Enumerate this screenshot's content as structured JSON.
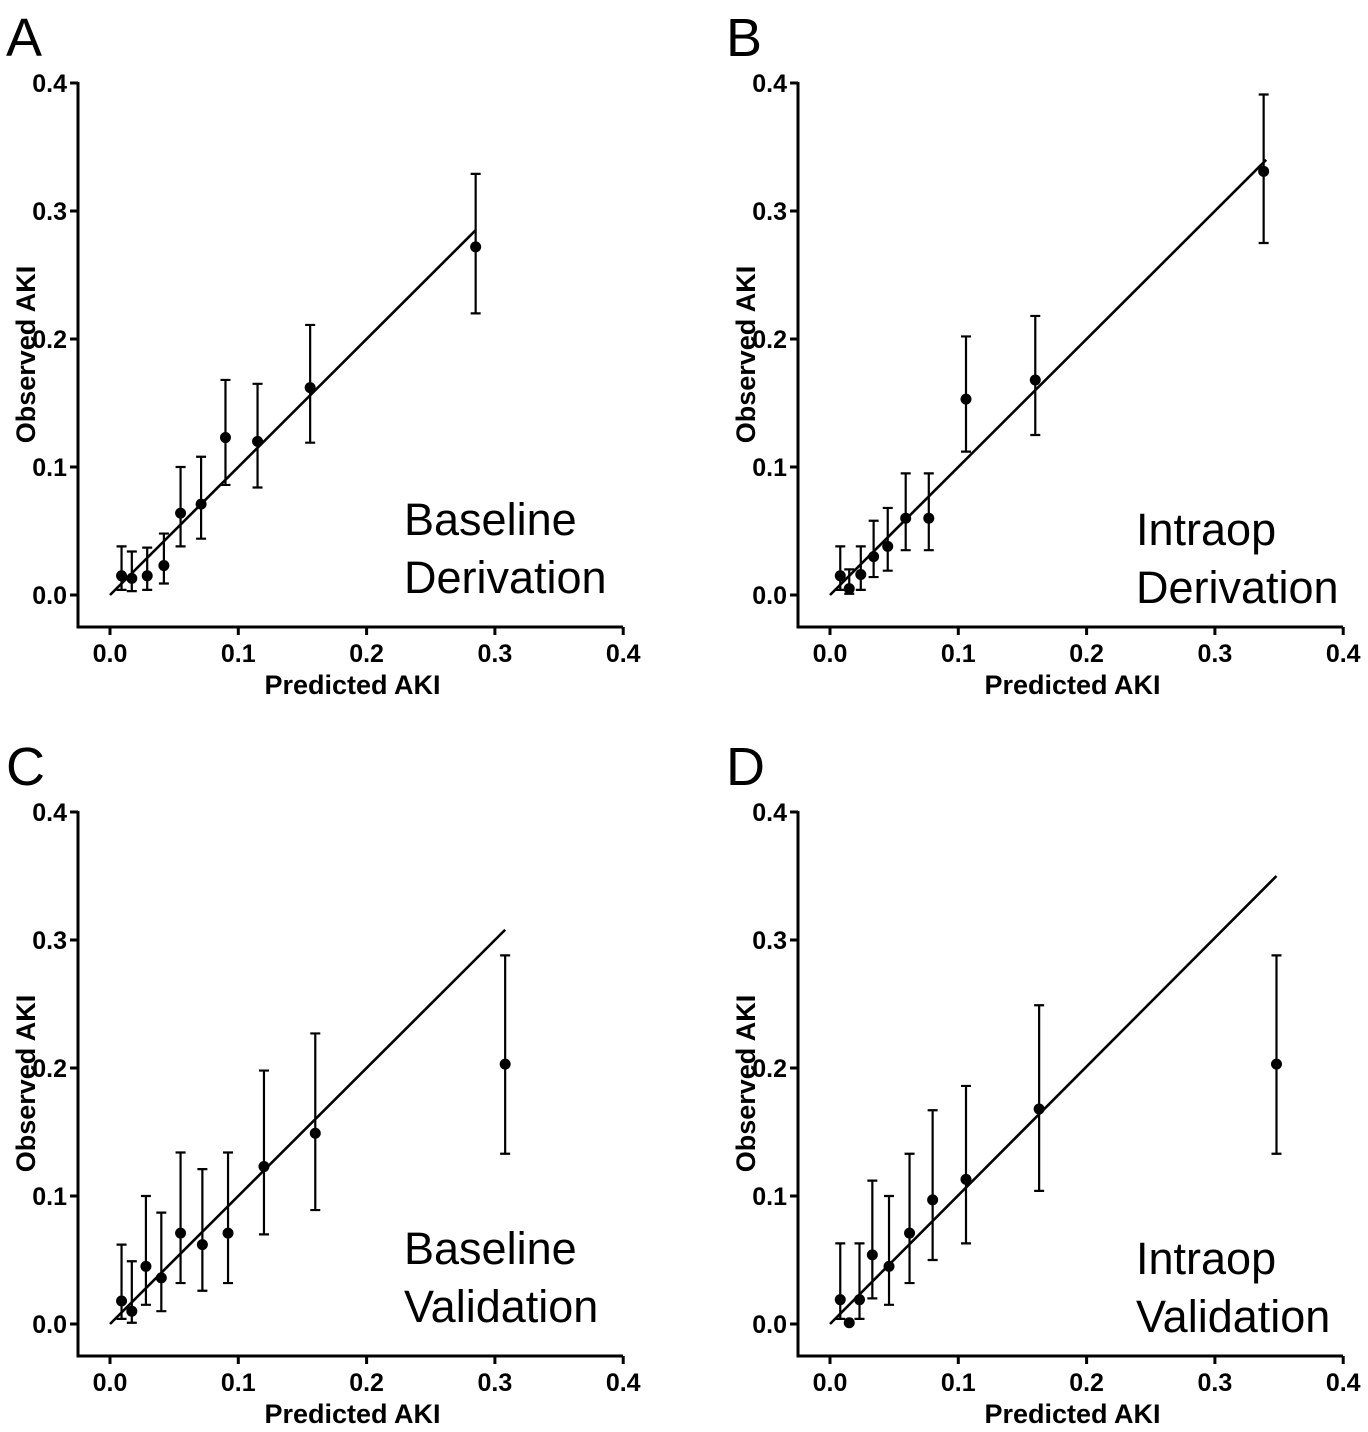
{
  "chart_data": [
    {
      "type": "scatter",
      "panel_label": "A",
      "annotation": [
        "Baseline",
        "Derivation"
      ],
      "xlabel": "Predicted AKI",
      "ylabel": "Observed AKI",
      "xlim": [
        0.0,
        0.4
      ],
      "ylim": [
        0.0,
        0.4
      ],
      "xticks": [
        "0.0",
        "0.1",
        "0.2",
        "0.3",
        "0.4"
      ],
      "yticks": [
        "0.0",
        "0.1",
        "0.2",
        "0.3",
        "0.4"
      ],
      "reference_line": {
        "x": [
          0.0,
          0.285
        ],
        "y": [
          0.0,
          0.285
        ]
      },
      "points": [
        {
          "x": 0.009,
          "y": 0.015,
          "lo": 0.004,
          "hi": 0.038
        },
        {
          "x": 0.017,
          "y": 0.013,
          "lo": 0.003,
          "hi": 0.034
        },
        {
          "x": 0.029,
          "y": 0.015,
          "lo": 0.004,
          "hi": 0.037
        },
        {
          "x": 0.042,
          "y": 0.023,
          "lo": 0.009,
          "hi": 0.048
        },
        {
          "x": 0.055,
          "y": 0.064,
          "lo": 0.038,
          "hi": 0.1
        },
        {
          "x": 0.071,
          "y": 0.071,
          "lo": 0.044,
          "hi": 0.108
        },
        {
          "x": 0.09,
          "y": 0.123,
          "lo": 0.086,
          "hi": 0.168
        },
        {
          "x": 0.115,
          "y": 0.12,
          "lo": 0.084,
          "hi": 0.165
        },
        {
          "x": 0.156,
          "y": 0.162,
          "lo": 0.119,
          "hi": 0.211
        },
        {
          "x": 0.285,
          "y": 0.272,
          "lo": 0.22,
          "hi": 0.329
        }
      ]
    },
    {
      "type": "scatter",
      "panel_label": "B",
      "annotation": [
        "Intraop",
        "Derivation"
      ],
      "xlabel": "Predicted AKI",
      "ylabel": "Observed AKI",
      "xlim": [
        0.0,
        0.4
      ],
      "ylim": [
        0.0,
        0.4
      ],
      "xticks": [
        "0.0",
        "0.1",
        "0.2",
        "0.3",
        "0.4"
      ],
      "yticks": [
        "0.0",
        "0.1",
        "0.2",
        "0.3",
        "0.4"
      ],
      "reference_line": {
        "x": [
          0.0,
          0.34
        ],
        "y": [
          0.0,
          0.34
        ]
      },
      "points": [
        {
          "x": 0.008,
          "y": 0.015,
          "lo": 0.004,
          "hi": 0.038
        },
        {
          "x": 0.015,
          "y": 0.005,
          "lo": 0.001,
          "hi": 0.02
        },
        {
          "x": 0.024,
          "y": 0.016,
          "lo": 0.004,
          "hi": 0.038
        },
        {
          "x": 0.034,
          "y": 0.03,
          "lo": 0.014,
          "hi": 0.058
        },
        {
          "x": 0.045,
          "y": 0.038,
          "lo": 0.019,
          "hi": 0.068
        },
        {
          "x": 0.059,
          "y": 0.06,
          "lo": 0.035,
          "hi": 0.095
        },
        {
          "x": 0.077,
          "y": 0.06,
          "lo": 0.035,
          "hi": 0.095
        },
        {
          "x": 0.106,
          "y": 0.153,
          "lo": 0.112,
          "hi": 0.202
        },
        {
          "x": 0.16,
          "y": 0.168,
          "lo": 0.125,
          "hi": 0.218
        },
        {
          "x": 0.338,
          "y": 0.331,
          "lo": 0.275,
          "hi": 0.391
        }
      ]
    },
    {
      "type": "scatter",
      "panel_label": "C",
      "annotation": [
        "Baseline",
        "Validation"
      ],
      "xlabel": "Predicted AKI",
      "ylabel": "Observed AKI",
      "xlim": [
        0.0,
        0.4
      ],
      "ylim": [
        0.0,
        0.4
      ],
      "xticks": [
        "0.0",
        "0.1",
        "0.2",
        "0.3",
        "0.4"
      ],
      "yticks": [
        "0.0",
        "0.1",
        "0.2",
        "0.3",
        "0.4"
      ],
      "reference_line": {
        "x": [
          0.0,
          0.308
        ],
        "y": [
          0.0,
          0.308
        ]
      },
      "points": [
        {
          "x": 0.009,
          "y": 0.018,
          "lo": 0.004,
          "hi": 0.062
        },
        {
          "x": 0.017,
          "y": 0.01,
          "lo": 0.001,
          "hi": 0.049
        },
        {
          "x": 0.028,
          "y": 0.045,
          "lo": 0.015,
          "hi": 0.1
        },
        {
          "x": 0.04,
          "y": 0.036,
          "lo": 0.01,
          "hi": 0.087
        },
        {
          "x": 0.055,
          "y": 0.071,
          "lo": 0.032,
          "hi": 0.134
        },
        {
          "x": 0.072,
          "y": 0.062,
          "lo": 0.026,
          "hi": 0.121
        },
        {
          "x": 0.092,
          "y": 0.071,
          "lo": 0.032,
          "hi": 0.134
        },
        {
          "x": 0.12,
          "y": 0.123,
          "lo": 0.07,
          "hi": 0.198
        },
        {
          "x": 0.16,
          "y": 0.149,
          "lo": 0.089,
          "hi": 0.227
        },
        {
          "x": 0.308,
          "y": 0.203,
          "lo": 0.133,
          "hi": 0.288
        }
      ]
    },
    {
      "type": "scatter",
      "panel_label": "D",
      "annotation": [
        "Intraop",
        "Validation"
      ],
      "xlabel": "Predicted AKI",
      "ylabel": "Observed AKI",
      "xlim": [
        0.0,
        0.4
      ],
      "ylim": [
        0.0,
        0.4
      ],
      "xticks": [
        "0.0",
        "0.1",
        "0.2",
        "0.3",
        "0.4"
      ],
      "yticks": [
        "0.0",
        "0.1",
        "0.2",
        "0.3",
        "0.4"
      ],
      "reference_line": {
        "x": [
          0.0,
          0.348
        ],
        "y": [
          0.0,
          0.35
        ]
      },
      "points": [
        {
          "x": 0.008,
          "y": 0.019,
          "lo": 0.004,
          "hi": 0.063
        },
        {
          "x": 0.015,
          "y": 0.001,
          "lo": 0.0,
          "hi": 0.0
        },
        {
          "x": 0.023,
          "y": 0.019,
          "lo": 0.004,
          "hi": 0.063
        },
        {
          "x": 0.033,
          "y": 0.054,
          "lo": 0.02,
          "hi": 0.112
        },
        {
          "x": 0.046,
          "y": 0.045,
          "lo": 0.015,
          "hi": 0.1
        },
        {
          "x": 0.062,
          "y": 0.071,
          "lo": 0.032,
          "hi": 0.133
        },
        {
          "x": 0.08,
          "y": 0.097,
          "lo": 0.05,
          "hi": 0.167
        },
        {
          "x": 0.106,
          "y": 0.113,
          "lo": 0.063,
          "hi": 0.186
        },
        {
          "x": 0.163,
          "y": 0.168,
          "lo": 0.104,
          "hi": 0.249
        },
        {
          "x": 0.348,
          "y": 0.203,
          "lo": 0.133,
          "hi": 0.288
        }
      ]
    }
  ]
}
